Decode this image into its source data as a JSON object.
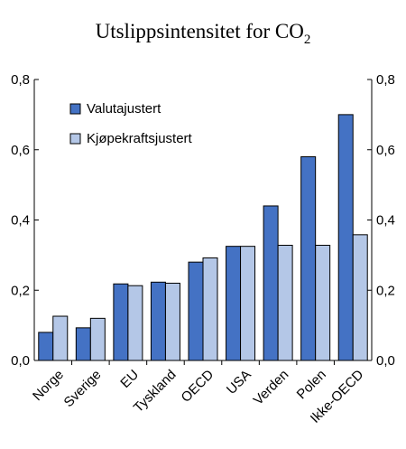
{
  "chart_data": {
    "type": "bar",
    "title": "Utslippsintensitet for CO",
    "title_subscript": "2",
    "categories": [
      "Norge",
      "Sverige",
      "EU",
      "Tyskland",
      "OECD",
      "USA",
      "Verden",
      "Polen",
      "Ikke-OECD"
    ],
    "series": [
      {
        "name": "Valutajustert",
        "color": "#4472C4",
        "values": [
          0.08,
          0.093,
          0.218,
          0.223,
          0.28,
          0.325,
          0.44,
          0.58,
          0.7
        ]
      },
      {
        "name": "Kjøpekraftsjustert",
        "color": "#B4C7E7",
        "values": [
          0.126,
          0.12,
          0.213,
          0.22,
          0.292,
          0.325,
          0.328,
          0.328,
          0.358
        ]
      }
    ],
    "ylim": [
      0,
      0.8
    ],
    "yticks": [
      "0,0",
      "0,2",
      "0,4",
      "0,6",
      "0,8"
    ],
    "ytick_values": [
      0,
      0.2,
      0.4,
      0.6,
      0.8
    ],
    "right_axis": true,
    "grid": false,
    "legend_position": "top-left",
    "xlabel": "",
    "ylabel": ""
  }
}
